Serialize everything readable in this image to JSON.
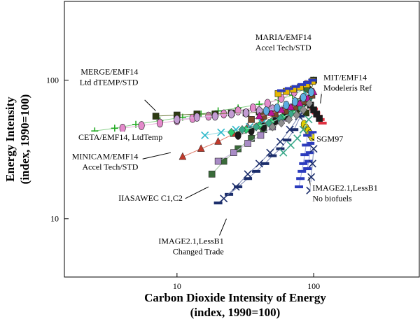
{
  "chart_data": {
    "type": "scatter",
    "title": "",
    "xlabel": [
      "Carbon Dioxide Intensity of Energy",
      "(index, 1990=100)"
    ],
    "ylabel": [
      "Energy Intensity",
      "(index, 1990=100)"
    ],
    "xscale": "log",
    "yscale": "log",
    "xlim": [
      1.5,
      600
    ],
    "ylim": [
      3.8,
      370
    ],
    "xticks": [
      {
        "value": 10,
        "label": "10"
      },
      {
        "value": 100,
        "label": "100"
      }
    ],
    "yticks": [
      {
        "value": 10,
        "label": "10"
      },
      {
        "value": 100,
        "label": "100"
      }
    ],
    "grid": false,
    "legend": "none",
    "colors": {
      "ceta": "#22aa22",
      "merge": "#2e3b12",
      "minicam": "#c0392b",
      "iiasa": "#3a6b3a",
      "image_trade": "#1b2d6b",
      "image_nobio": "#1b2d6b",
      "maria": "#e6b800",
      "mit": "#e03040",
      "sgm": "#e0d000",
      "pink": "#e48acb",
      "cyan": "#2ab7c9",
      "orchid": "#c39bd3",
      "lilac": "#a98cc6",
      "green2": "#2ecc71",
      "teal": "#3aa88a",
      "blue": "#2b3bbd",
      "brown": "#7a4a2a",
      "magenta": "#c0149a",
      "sky": "#5dade2",
      "grey": "#8e8e8e"
    },
    "series": [
      {
        "key": "ceta",
        "marker": "plus",
        "color": "#22aa22",
        "line": "#8ad08a",
        "x": [
          2.5,
          3.5,
          5,
          7.5,
          11,
          15,
          20,
          28,
          40,
          55,
          70,
          85,
          100
        ],
        "y": [
          43,
          45,
          48,
          51,
          54,
          57,
          60,
          63,
          67,
          72,
          78,
          86,
          100
        ]
      },
      {
        "key": "pink",
        "marker": "ellipse",
        "color": "#e48acb",
        "line": "#e8a8d8",
        "x": [
          4,
          5.5,
          7.5,
          10,
          13,
          17,
          22,
          28,
          36,
          46,
          58,
          72,
          88
        ],
        "y": [
          45,
          47,
          49,
          51,
          53,
          55,
          57,
          60,
          63,
          68,
          74,
          82,
          93
        ]
      },
      {
        "key": "merge",
        "marker": "square",
        "color": "#2e3b12",
        "line": "#6b7a3a",
        "x": [
          7,
          10,
          14,
          19,
          25,
          32,
          40,
          50,
          62,
          75,
          88,
          100
        ],
        "y": [
          55,
          56,
          57,
          57,
          58,
          58,
          59,
          59,
          60,
          60,
          58,
          100
        ]
      },
      {
        "key": "orchid",
        "marker": "ellipse",
        "color": "#c39bd3",
        "line": "#d8c0e4",
        "x": [
          10,
          14,
          19,
          25,
          32,
          40,
          50,
          62,
          75,
          88
        ],
        "y": [
          52,
          54,
          55,
          57,
          58,
          60,
          62,
          63,
          66,
          70
        ]
      },
      {
        "key": "minicam",
        "marker": "triangle",
        "color": "#c0392b",
        "line": "#e08070",
        "x": [
          11,
          15,
          20,
          26,
          33,
          42,
          53,
          66,
          80,
          95
        ],
        "y": [
          28,
          32,
          36,
          41,
          46,
          51,
          57,
          63,
          72,
          85
        ]
      },
      {
        "key": "iiasa",
        "marker": "square",
        "color": "#3a6b3a",
        "line": "#9bbf9b",
        "x": [
          18,
          22,
          28,
          35,
          43,
          53,
          64,
          77,
          90
        ],
        "y": [
          21,
          26,
          32,
          38,
          44,
          51,
          59,
          70,
          86
        ]
      },
      {
        "key": "lilac",
        "marker": "square",
        "color": "#a98cc6",
        "line": "#c9b6de",
        "x": [
          20,
          26,
          33,
          41,
          50,
          60,
          72,
          85
        ],
        "y": [
          26,
          30,
          35,
          40,
          46,
          53,
          62,
          74
        ]
      },
      {
        "key": "image_trade",
        "marker": "dash",
        "color": "#1b2d6b",
        "line": "#7b88b5",
        "x": [
          20,
          24,
          28,
          33,
          38,
          44,
          50,
          57,
          64,
          72,
          80,
          88
        ],
        "y": [
          13,
          15,
          17,
          19.5,
          22,
          25,
          28.5,
          32,
          37,
          44,
          55,
          70
        ]
      },
      {
        "key": "image_xx",
        "marker": "x",
        "color": "#1b2d6b",
        "line": "#7b88b5",
        "x": [
          22,
          27,
          33,
          40,
          48,
          57,
          67,
          78,
          90
        ],
        "y": [
          14,
          17,
          21,
          25,
          30,
          36,
          44,
          55,
          70
        ]
      },
      {
        "key": "cyan",
        "marker": "x",
        "color": "#2ab7c9",
        "line": "#8fd8e2",
        "x": [
          16,
          21,
          27,
          34,
          42,
          52,
          63,
          76,
          90
        ],
        "y": [
          40,
          42,
          44,
          46,
          49,
          53,
          58,
          66,
          78
        ]
      },
      {
        "key": "dark_ellipse",
        "marker": "ellipse",
        "color": "#1a1a1a",
        "line": "#777777",
        "x": [
          28,
          35,
          43,
          52,
          62,
          73,
          85,
          97
        ],
        "y": [
          40,
          43,
          46,
          50,
          55,
          61,
          69,
          80
        ]
      },
      {
        "key": "green2",
        "marker": "diamond",
        "color": "#2ecc71",
        "line": "#8fe0b0",
        "x": [
          25,
          32,
          40,
          49,
          59,
          70,
          82,
          95
        ],
        "y": [
          42,
          44,
          47,
          50,
          54,
          59,
          66,
          76
        ]
      },
      {
        "key": "teal",
        "marker": "diamond",
        "color": "#3aa88a",
        "line": "#9fd6c6",
        "x": [
          30,
          38,
          47,
          57,
          68,
          80,
          92
        ],
        "y": [
          44,
          46,
          49,
          53,
          57,
          63,
          72
        ]
      },
      {
        "key": "brown",
        "marker": "square",
        "color": "#7a4a2a",
        "line": "#b89a80",
        "x": [
          35,
          43,
          52,
          62,
          73,
          85,
          97
        ],
        "y": [
          52,
          55,
          57,
          60,
          64,
          70,
          78
        ]
      },
      {
        "key": "magenta",
        "marker": "triangle",
        "color": "#c0149a",
        "line": "#e080c8",
        "x": [
          40,
          49,
          58,
          68,
          79,
          90,
          100
        ],
        "y": [
          55,
          58,
          61,
          64,
          68,
          74,
          82
        ]
      },
      {
        "key": "sky",
        "marker": "ellipse",
        "color": "#5dade2",
        "line": "#a8d4f0",
        "x": [
          45,
          54,
          63,
          73,
          84,
          96
        ],
        "y": [
          60,
          63,
          66,
          70,
          75,
          82
        ]
      },
      {
        "key": "maria",
        "marker": "square",
        "color": "#e6b800",
        "line": "#f0dc80",
        "x": [
          55,
          63,
          71,
          80,
          89,
          98
        ],
        "y": [
          80,
          83,
          86,
          89,
          93,
          98
        ]
      },
      {
        "key": "maria_dash",
        "marker": "dash",
        "color": "#2b3bbd",
        "line": "#9aa3e0",
        "x": [
          58,
          66,
          74,
          82,
          90,
          98
        ],
        "y": [
          84,
          87,
          90,
          93,
          96,
          100
        ]
      },
      {
        "key": "mit",
        "marker": "dash",
        "color": "#e03040",
        "line": "#f0a0a8",
        "x": [
          100,
          104,
          108,
          112,
          116
        ],
        "y": [
          62,
          58,
          55,
          52,
          49
        ]
      },
      {
        "key": "mit_blk",
        "marker": "square",
        "color": "#1a1a1a",
        "line": "#888888",
        "x": [
          95,
          100,
          105,
          110
        ],
        "y": [
          66,
          61,
          57,
          53
        ]
      },
      {
        "key": "sgm",
        "marker": "ellipse",
        "color": "#e0d000",
        "line": "#f0e880",
        "x": [
          85,
          88,
          91,
          94,
          97
        ],
        "y": [
          48,
          45,
          43,
          41,
          39
        ]
      },
      {
        "key": "image_nobio",
        "marker": "dash",
        "color": "#2b3bbd",
        "line": "#9aa3e0",
        "x": [
          78,
          80,
          82,
          84,
          86,
          88,
          90
        ],
        "y": [
          17,
          19.5,
          22,
          25,
          29,
          34,
          40
        ]
      },
      {
        "key": "image_nobio2",
        "marker": "dash",
        "color": "#2b3bbd",
        "line": "#9aa3e0",
        "x": [
          90,
          92,
          94,
          96,
          98
        ],
        "y": [
          23,
          26,
          30,
          35,
          42
        ]
      },
      {
        "key": "image_nobio_x",
        "marker": "x",
        "color": "#1b2d6b",
        "line": "#7b88b5",
        "x": [
          94,
          96,
          98,
          100
        ],
        "y": [
          16,
          20,
          25,
          32
        ]
      },
      {
        "key": "teal_x",
        "marker": "x",
        "color": "#3aa88a",
        "line": "#9fd6c6",
        "x": [
          60,
          68,
          76,
          84,
          92
        ],
        "y": [
          30,
          34,
          38,
          44,
          52
        ]
      },
      {
        "key": "grey",
        "marker": "diamond",
        "color": "#8e8e8e",
        "line": "#c8c8c8",
        "x": [
          50,
          58,
          66,
          75,
          84,
          93
        ],
        "y": [
          46,
          49,
          52,
          56,
          61,
          68
        ]
      }
    ],
    "annotations": [
      {
        "lines": [
          "MARIA/EMF14",
          "Accel Tech/STD"
        ],
        "anchor": "middle",
        "tx": 60,
        "ty": 195,
        "point": [
          62,
          100
        ],
        "leader": [
          [
            58,
            170
          ],
          [
            70,
            170
          ]
        ]
      },
      {
        "lines": [
          "MERGE/EMF14",
          "Ltd dTEMP/STD"
        ],
        "anchor": "end",
        "tx": 5.2,
        "ty": 110,
        "point": [
          8,
          60
        ],
        "leader": [
          [
            5.8,
            72
          ],
          [
            7,
            60
          ]
        ]
      },
      {
        "lines": [
          "MIT/EMF14",
          "Modelerís Ref"
        ],
        "anchor": "start",
        "tx": 118,
        "ty": 100,
        "point": [
          112,
          60
        ],
        "leader": [
          [
            116,
            90
          ],
          [
            112,
            68
          ]
        ]
      },
      {
        "lines": [
          "CETA/EMF14, LtdTemp"
        ],
        "anchor": "start",
        "tx": 1.9,
        "ty": 37,
        "point": [
          2.6,
          42
        ],
        "leader": [
          [
            2.4,
            39
          ],
          [
            2.6,
            42
          ]
        ]
      },
      {
        "lines": [
          "SGM97"
        ],
        "anchor": "start",
        "tx": 105,
        "ty": 36,
        "point": [
          95,
          38
        ],
        "leader": [
          [
            103,
            36.5
          ],
          [
            96,
            38
          ]
        ]
      },
      {
        "lines": [
          "MINICAM/EMF14",
          "Accel Tech/STD"
        ],
        "anchor": "end",
        "tx": 5.2,
        "ty": 27,
        "point": [
          9,
          30
        ],
        "leader": [
          [
            5.6,
            27
          ],
          [
            9,
            30
          ]
        ]
      },
      {
        "lines": [
          "IIASAWEC C1,C2"
        ],
        "anchor": "end",
        "tx": 11,
        "ty": 13.5,
        "point": [
          17,
          17
        ],
        "leader": [
          [
            11.5,
            14
          ],
          [
            17,
            17
          ]
        ]
      },
      {
        "lines": [
          "IMAGE2.1,LessB1",
          "Changed Trade"
        ],
        "anchor": "end",
        "tx": 22,
        "ty": 6.6,
        "point": [
          23,
          13
        ],
        "leader": [
          [
            20,
            7.2
          ],
          [
            23,
            10
          ]
        ]
      },
      {
        "lines": [
          "IMAGE2.1,LessB1",
          "No biofuels"
        ],
        "anchor": "start",
        "tx": 98,
        "ty": 16,
        "point": [
          92,
          20
        ],
        "leader": [
          [
            96,
            16.5
          ],
          [
            92,
            20
          ]
        ]
      }
    ]
  }
}
